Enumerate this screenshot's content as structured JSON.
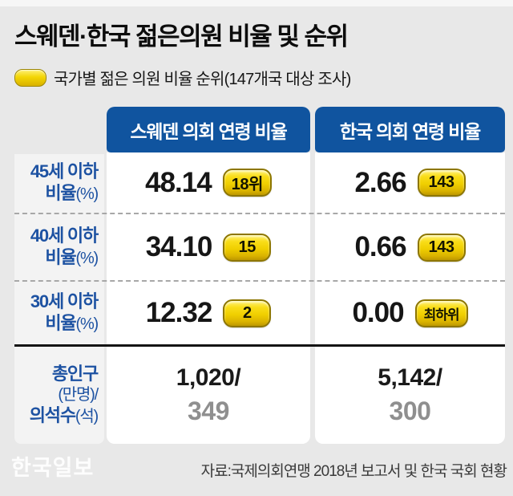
{
  "title": "스웨덴·한국 젊은의원 비율 및 순위",
  "legend": {
    "label": "국가별 젊은 의원 비율 순위(147개국 대상 조사)"
  },
  "source": "자료:국제의회연맹 2018년 보고서 및 한국 국회 현황",
  "watermark": "한국일보",
  "colors": {
    "page_bg": "#e8e8e8",
    "header_blue": "#10549f",
    "label_blue": "#1d52a2",
    "pill_yellow": "#f0cf00",
    "pill_border": "#8d7600",
    "value_black": "#161616",
    "seats_gray": "#8f8f8f"
  },
  "chart_data": {
    "type": "table",
    "title": "스웨덴·한국 젊은의원 비율 및 순위",
    "note": "국가별 젊은 의원 비율 순위(147개국 대상 조사)",
    "columns": [
      "스웨덴 의회 연령 비율",
      "한국 의회 연령 비율"
    ],
    "rows": [
      {
        "label": "45세 이하",
        "label2": "비율",
        "unit": "(%)",
        "sweden_value": "48.14",
        "sweden_rank": "18위",
        "korea_value": "2.66",
        "korea_rank": "143"
      },
      {
        "label": "40세 이하",
        "label2": "비율",
        "unit": "(%)",
        "sweden_value": "34.10",
        "sweden_rank": "15",
        "korea_value": "0.66",
        "korea_rank": "143"
      },
      {
        "label": "30세 이하",
        "label2": "비율",
        "unit": "(%)",
        "sweden_value": "12.32",
        "sweden_rank": "2",
        "korea_value": "0.00",
        "korea_rank": "최하위"
      }
    ],
    "totals": {
      "label_line1": "총인구",
      "label_line2": "(만명)/",
      "label_line3": "의석수",
      "label_line3_unit": "(석)",
      "sweden_population": "1,020/",
      "sweden_seats": "349",
      "korea_population": "5,142/",
      "korea_seats": "300"
    }
  }
}
